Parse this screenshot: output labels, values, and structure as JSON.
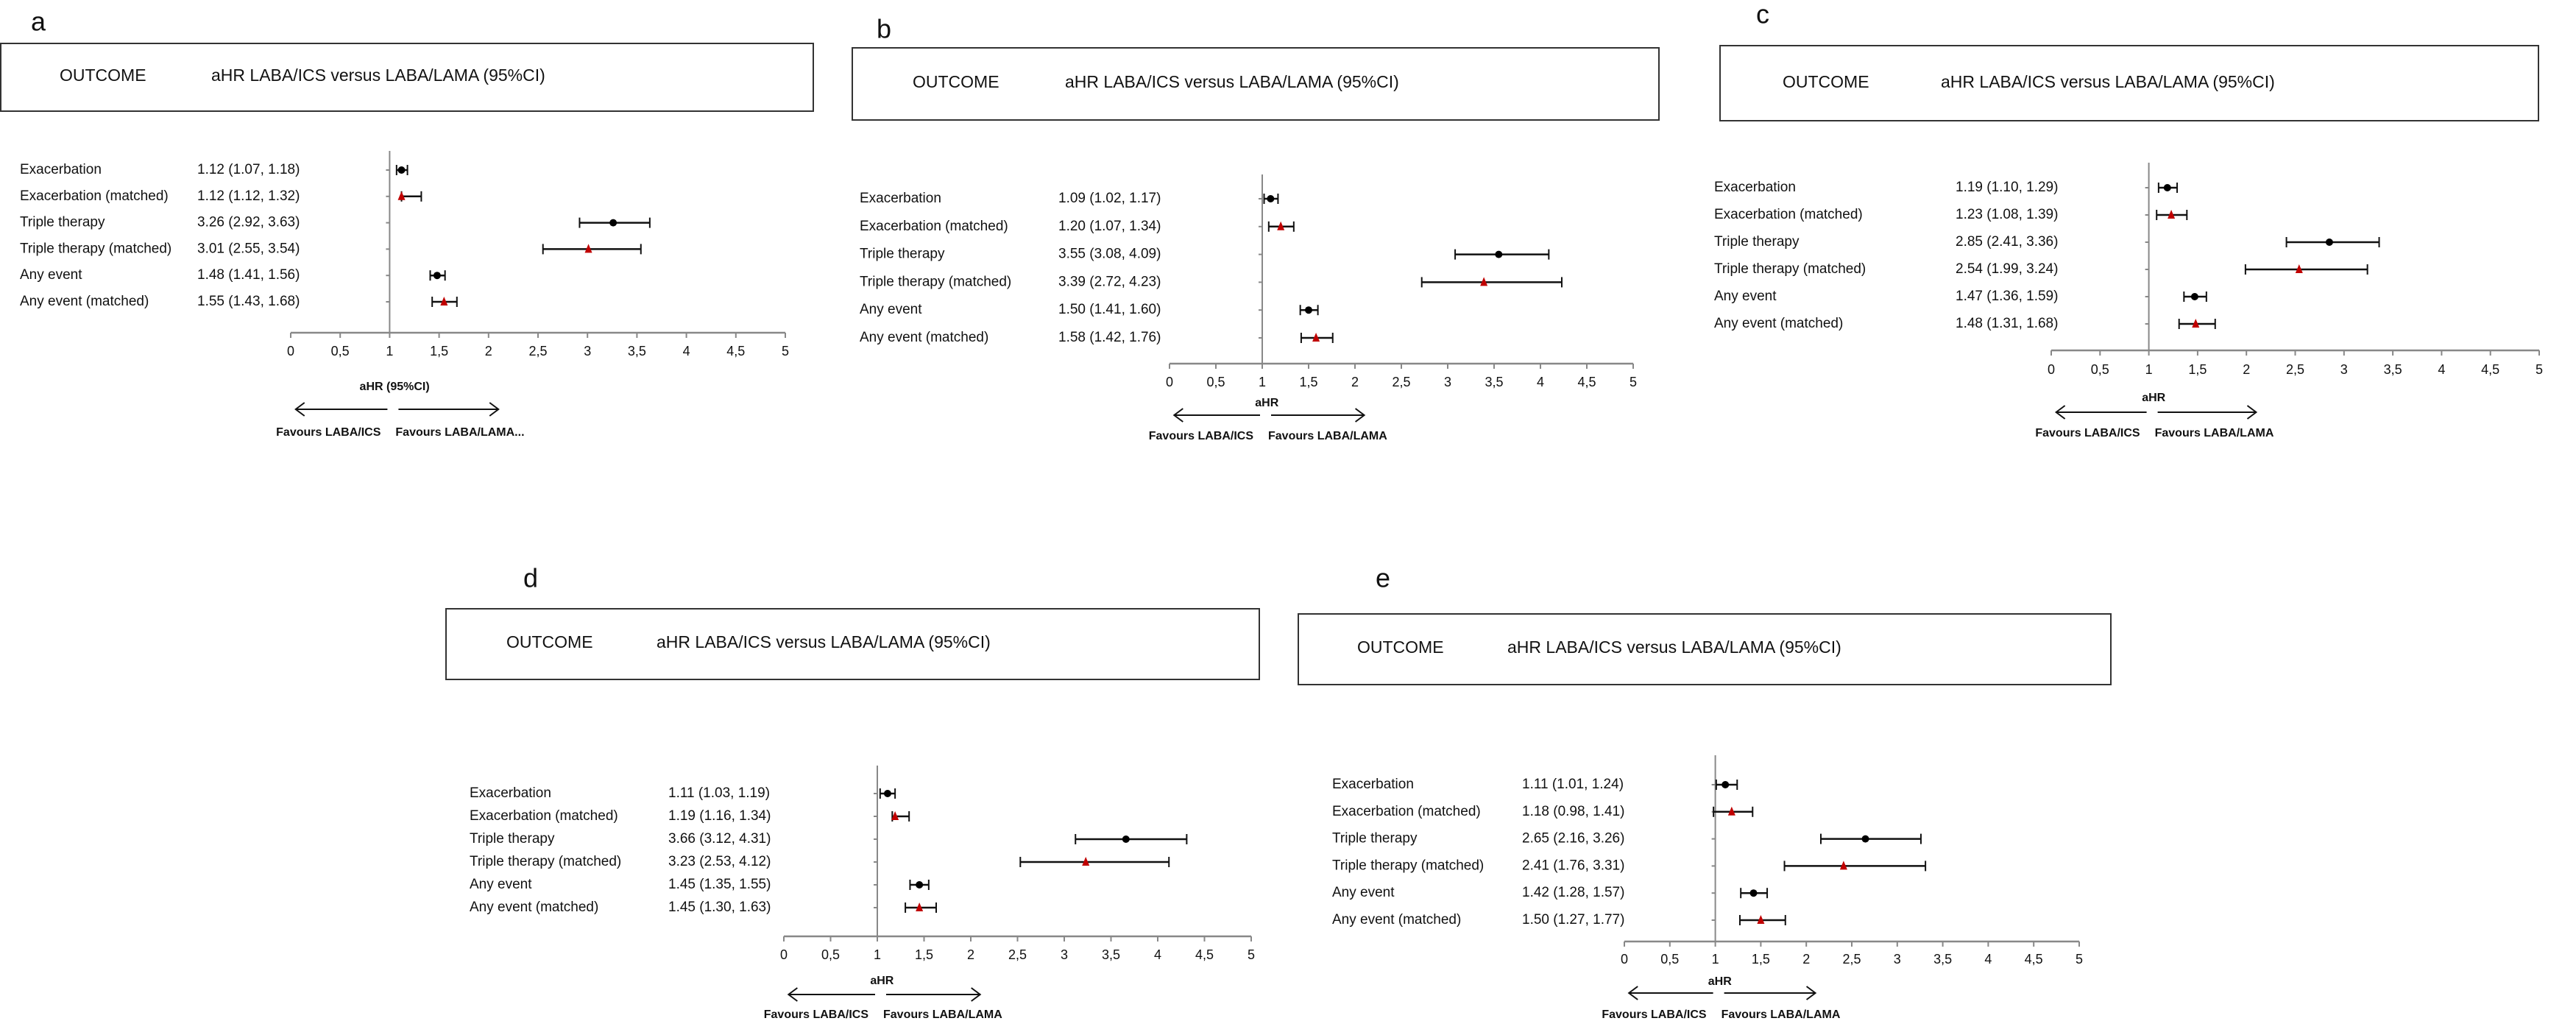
{
  "chart_data": [
    {
      "panel": "a",
      "type": "forest",
      "header_outcome": "OUTCOME",
      "header_title": "aHR LABA/ICS versus LABA/LAMA (95%CI)",
      "xlabel": "aHR (95%CI)",
      "xlim": [
        0,
        5
      ],
      "xticks": [
        "0",
        "0,5",
        "1",
        "1,5",
        "2",
        "2,5",
        "3",
        "3,5",
        "4",
        "4,5",
        "5"
      ],
      "favours_left": "Favours LABA/ICS",
      "favours_right": "Favours LABA/LAMA...",
      "rows": [
        {
          "outcome": "Exacerbation",
          "ci_text": "1.12 (1.07, 1.18)",
          "hr": 1.12,
          "lo": 1.07,
          "hi": 1.18,
          "matched": false
        },
        {
          "outcome": "Exacerbation (matched)",
          "ci_text": "1.12 (1.12, 1.32)",
          "hr": 1.12,
          "lo": 1.12,
          "hi": 1.32,
          "matched": true
        },
        {
          "outcome": "Triple therapy",
          "ci_text": "3.26 (2.92, 3.63)",
          "hr": 3.26,
          "lo": 2.92,
          "hi": 3.63,
          "matched": false
        },
        {
          "outcome": "Triple therapy (matched)",
          "ci_text": "3.01 (2.55, 3.54)",
          "hr": 3.01,
          "lo": 2.55,
          "hi": 3.54,
          "matched": true
        },
        {
          "outcome": "Any event",
          "ci_text": "1.48 (1.41, 1.56)",
          "hr": 1.48,
          "lo": 1.41,
          "hi": 1.56,
          "matched": false
        },
        {
          "outcome": "Any event (matched)",
          "ci_text": "1.55 (1.43, 1.68)",
          "hr": 1.55,
          "lo": 1.43,
          "hi": 1.68,
          "matched": true
        }
      ]
    },
    {
      "panel": "b",
      "type": "forest",
      "header_outcome": "OUTCOME",
      "header_title": "aHR LABA/ICS versus LABA/LAMA (95%CI)",
      "xlabel": "aHR",
      "xlim": [
        0,
        5
      ],
      "xticks": [
        "0",
        "0,5",
        "1",
        "1,5",
        "2",
        "2,5",
        "3",
        "3,5",
        "4",
        "4,5",
        "5"
      ],
      "favours_left": "Favours LABA/ICS",
      "favours_right": "Favours LABA/LAMA",
      "rows": [
        {
          "outcome": "Exacerbation",
          "ci_text": "1.09 (1.02, 1.17)",
          "hr": 1.09,
          "lo": 1.02,
          "hi": 1.17,
          "matched": false
        },
        {
          "outcome": "Exacerbation (matched)",
          "ci_text": "1.20 (1.07, 1.34)",
          "hr": 1.2,
          "lo": 1.07,
          "hi": 1.34,
          "matched": true
        },
        {
          "outcome": "Triple therapy",
          "ci_text": "3.55 (3.08, 4.09)",
          "hr": 3.55,
          "lo": 3.08,
          "hi": 4.09,
          "matched": false
        },
        {
          "outcome": "Triple therapy (matched)",
          "ci_text": "3.39 (2.72, 4.23)",
          "hr": 3.39,
          "lo": 2.72,
          "hi": 4.23,
          "matched": true
        },
        {
          "outcome": "Any event",
          "ci_text": "1.50 (1.41, 1.60)",
          "hr": 1.5,
          "lo": 1.41,
          "hi": 1.6,
          "matched": false
        },
        {
          "outcome": "Any event (matched)",
          "ci_text": "1.58 (1.42, 1.76)",
          "hr": 1.58,
          "lo": 1.42,
          "hi": 1.76,
          "matched": true
        }
      ]
    },
    {
      "panel": "c",
      "type": "forest",
      "header_outcome": "OUTCOME",
      "header_title": "aHR LABA/ICS versus LABA/LAMA (95%CI)",
      "xlabel": "aHR",
      "xlim": [
        0,
        5
      ],
      "xticks": [
        "0",
        "0,5",
        "1",
        "1,5",
        "2",
        "2,5",
        "3",
        "3,5",
        "4",
        "4,5",
        "5"
      ],
      "favours_left": "Favours LABA/ICS",
      "favours_right": "Favours LABA/LAMA",
      "rows": [
        {
          "outcome": "Exacerbation",
          "ci_text": "1.19 (1.10, 1.29)",
          "hr": 1.19,
          "lo": 1.1,
          "hi": 1.29,
          "matched": false
        },
        {
          "outcome": "Exacerbation (matched)",
          "ci_text": "1.23 (1.08, 1.39)",
          "hr": 1.23,
          "lo": 1.08,
          "hi": 1.39,
          "matched": true
        },
        {
          "outcome": "Triple therapy",
          "ci_text": "2.85 (2.41, 3.36)",
          "hr": 2.85,
          "lo": 2.41,
          "hi": 3.36,
          "matched": false
        },
        {
          "outcome": "Triple therapy (matched)",
          "ci_text": "2.54 (1.99, 3.24)",
          "hr": 2.54,
          "lo": 1.99,
          "hi": 3.24,
          "matched": true
        },
        {
          "outcome": "Any event",
          "ci_text": "1.47 (1.36, 1.59)",
          "hr": 1.47,
          "lo": 1.36,
          "hi": 1.59,
          "matched": false
        },
        {
          "outcome": "Any event (matched)",
          "ci_text": "1.48 (1.31, 1.68)",
          "hr": 1.48,
          "lo": 1.31,
          "hi": 1.68,
          "matched": true
        }
      ]
    },
    {
      "panel": "d",
      "type": "forest",
      "header_outcome": "OUTCOME",
      "header_title": "aHR LABA/ICS versus LABA/LAMA (95%CI)",
      "xlabel": "aHR",
      "xlim": [
        0,
        5
      ],
      "xticks": [
        "0",
        "0,5",
        "1",
        "1,5",
        "2",
        "2,5",
        "3",
        "3,5",
        "4",
        "4,5",
        "5"
      ],
      "favours_left": "Favours LABA/ICS",
      "favours_right": "Favours LABA/LAMA",
      "rows": [
        {
          "outcome": "Exacerbation",
          "ci_text": "1.11 (1.03, 1.19)",
          "hr": 1.11,
          "lo": 1.03,
          "hi": 1.19,
          "matched": false
        },
        {
          "outcome": "Exacerbation (matched)",
          "ci_text": "1.19 (1.16, 1.34)",
          "hr": 1.19,
          "lo": 1.16,
          "hi": 1.34,
          "matched": true
        },
        {
          "outcome": "Triple therapy",
          "ci_text": "3.66 (3.12, 4.31)",
          "hr": 3.66,
          "lo": 3.12,
          "hi": 4.31,
          "matched": false
        },
        {
          "outcome": "Triple therapy (matched)",
          "ci_text": "3.23 (2.53, 4.12)",
          "hr": 3.23,
          "lo": 2.53,
          "hi": 4.12,
          "matched": true
        },
        {
          "outcome": "Any event",
          "ci_text": "1.45 (1.35, 1.55)",
          "hr": 1.45,
          "lo": 1.35,
          "hi": 1.55,
          "matched": false
        },
        {
          "outcome": "Any event (matched)",
          "ci_text": "1.45 (1.30, 1.63)",
          "hr": 1.45,
          "lo": 1.3,
          "hi": 1.63,
          "matched": true
        }
      ]
    },
    {
      "panel": "e",
      "type": "forest",
      "header_outcome": "OUTCOME",
      "header_title": "aHR LABA/ICS versus LABA/LAMA (95%CI)",
      "xlabel": "aHR",
      "xlim": [
        0,
        5
      ],
      "xticks": [
        "0",
        "0,5",
        "1",
        "1,5",
        "2",
        "2,5",
        "3",
        "3,5",
        "4",
        "4,5",
        "5"
      ],
      "favours_left": "Favours LABA/ICS",
      "favours_right": "Favours LABA/LAMA",
      "rows": [
        {
          "outcome": "Exacerbation",
          "ci_text": "1.11 (1.01, 1.24)",
          "hr": 1.11,
          "lo": 1.01,
          "hi": 1.24,
          "matched": false
        },
        {
          "outcome": "Exacerbation (matched)",
          "ci_text": "1.18 (0.98, 1.41)",
          "hr": 1.18,
          "lo": 0.98,
          "hi": 1.41,
          "matched": true
        },
        {
          "outcome": "Triple therapy",
          "ci_text": "2.65 (2.16, 3.26)",
          "hr": 2.65,
          "lo": 2.16,
          "hi": 3.26,
          "matched": false
        },
        {
          "outcome": "Triple therapy (matched)",
          "ci_text": "2.41 (1.76, 3.31)",
          "hr": 2.41,
          "lo": 1.76,
          "hi": 3.31,
          "matched": true
        },
        {
          "outcome": "Any event",
          "ci_text": "1.42 (1.28, 1.57)",
          "hr": 1.42,
          "lo": 1.28,
          "hi": 1.57,
          "matched": false
        },
        {
          "outcome": "Any event (matched)",
          "ci_text": "1.50 (1.27, 1.77)",
          "hr": 1.5,
          "lo": 1.27,
          "hi": 1.77,
          "matched": true
        }
      ]
    }
  ],
  "colors": {
    "unmatched_marker": "#000000",
    "matched_marker": "#c00000",
    "axis": "#888888"
  },
  "marker_shapes": {
    "unmatched": "circle",
    "matched": "triangle"
  }
}
